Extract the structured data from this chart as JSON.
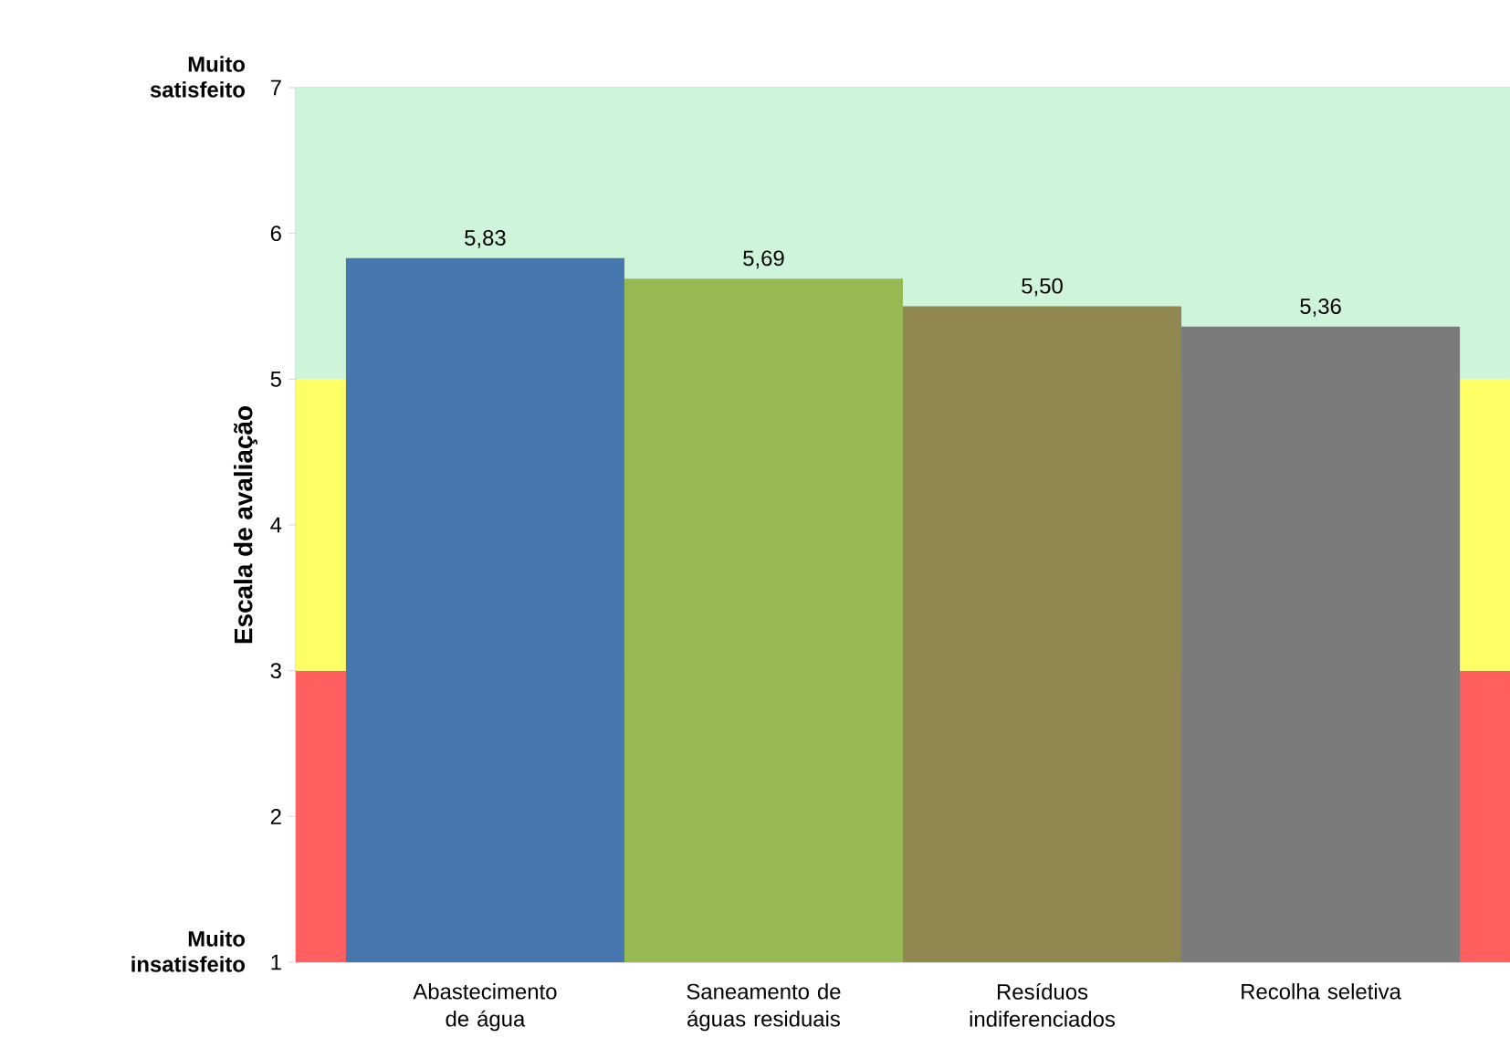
{
  "chart_data": {
    "type": "bar",
    "ylabel": "Escala de avaliação",
    "categories": [
      "Abastecimento de água",
      "Saneamento de águas residuais",
      "Resíduos indiferenciados",
      "Recolha seletiva"
    ],
    "values": [
      5.83,
      5.69,
      5.5,
      5.36
    ],
    "colors": [
      "#4877b0",
      "#97b954",
      "#908850",
      "#7b7b7b"
    ],
    "value_labels": [
      "5,83",
      "5,69",
      "5,50",
      "5,36"
    ],
    "ylim": [
      1,
      7
    ],
    "yticks": [
      1,
      2,
      3,
      4,
      5,
      6,
      7
    ],
    "bands": [
      {
        "axis": "y",
        "from": 1,
        "to": 3,
        "color": "#ff5f5f"
      },
      {
        "axis": "y",
        "from": 3,
        "to": 5,
        "color": "#ffff66"
      },
      {
        "axis": "y",
        "from": 5,
        "to": 7,
        "color": "#cef4da"
      }
    ],
    "annotations": [
      "Muito satisfeito",
      "Muito insatisfeito"
    ],
    "grid": false
  }
}
